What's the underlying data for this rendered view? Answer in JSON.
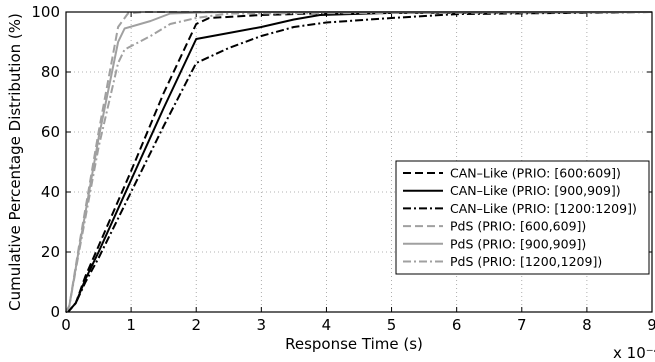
{
  "chart_data": {
    "type": "line",
    "xlabel": "Response Time (s)",
    "ylabel": "Cumulative Percentage Distribution (%)",
    "x_multiplier_label": "x 10⁻⁴",
    "xlim": [
      0,
      9
    ],
    "ylim": [
      0,
      100
    ],
    "x_ticks": [
      0,
      1,
      2,
      3,
      4,
      5,
      6,
      7,
      8,
      9
    ],
    "y_ticks": [
      0,
      20,
      40,
      60,
      80,
      100
    ],
    "grid": true,
    "legend_position": "center-right",
    "series": [
      {
        "name": "CAN–Like (PRIO: [600:609])",
        "color": "#000000",
        "dash": "dashed",
        "x": [
          0,
          0.05,
          0.15,
          0.3,
          0.5,
          1.0,
          1.5,
          2.0,
          2.2,
          3.0,
          4.0,
          5.0,
          9.0
        ],
        "y": [
          0,
          0.5,
          3,
          12,
          22,
          47,
          73,
          96,
          98,
          99,
          99.6,
          100,
          100
        ]
      },
      {
        "name": "CAN–Like (PRIO: [900,909])",
        "color": "#000000",
        "dash": "solid",
        "x": [
          0,
          0.05,
          0.15,
          0.3,
          0.5,
          1.0,
          1.5,
          2.0,
          2.5,
          3.0,
          3.5,
          3.9,
          5.0,
          9.0
        ],
        "y": [
          0,
          0.5,
          3,
          11,
          20,
          44,
          68,
          91,
          93,
          95,
          97.5,
          99,
          99.7,
          100
        ]
      },
      {
        "name": "CAN–Like (PRIO: [1200:1209])",
        "color": "#000000",
        "dash": "dashdot",
        "x": [
          0,
          0.05,
          0.15,
          0.3,
          0.5,
          1.0,
          1.5,
          2.0,
          2.5,
          3.0,
          3.5,
          4.0,
          5.0,
          6.0,
          9.0
        ],
        "y": [
          0,
          0.5,
          3,
          10,
          18,
          40,
          62,
          83,
          88,
          92,
          95,
          96.5,
          98,
          99.3,
          100
        ]
      },
      {
        "name": "PdS (PRIO: [600,609])",
        "color": "#a0a0a0",
        "dash": "dashed",
        "x": [
          0,
          0.05,
          0.2,
          0.5,
          0.8,
          0.95,
          1.2,
          1.6,
          2.0,
          9.0
        ],
        "y": [
          0,
          2,
          22,
          60,
          95,
          99.5,
          100,
          100,
          100,
          100
        ]
      },
      {
        "name": "PdS (PRIO: [900,909])",
        "color": "#a0a0a0",
        "dash": "solid",
        "x": [
          0,
          0.05,
          0.2,
          0.5,
          0.8,
          0.9,
          1.3,
          1.6,
          2.0,
          2.5,
          9.0
        ],
        "y": [
          0,
          2,
          21,
          58,
          90,
          94.5,
          97,
          99.5,
          99.8,
          100,
          100
        ]
      },
      {
        "name": "PdS (PRIO: [1200,1209])",
        "color": "#a0a0a0",
        "dash": "dashdot",
        "x": [
          0,
          0.05,
          0.2,
          0.5,
          0.8,
          0.9,
          1.3,
          1.6,
          2.0,
          2.5,
          9.0
        ],
        "y": [
          0,
          2,
          20,
          55,
          83,
          87.5,
          92,
          96,
          98,
          99.5,
          100
        ]
      }
    ]
  }
}
